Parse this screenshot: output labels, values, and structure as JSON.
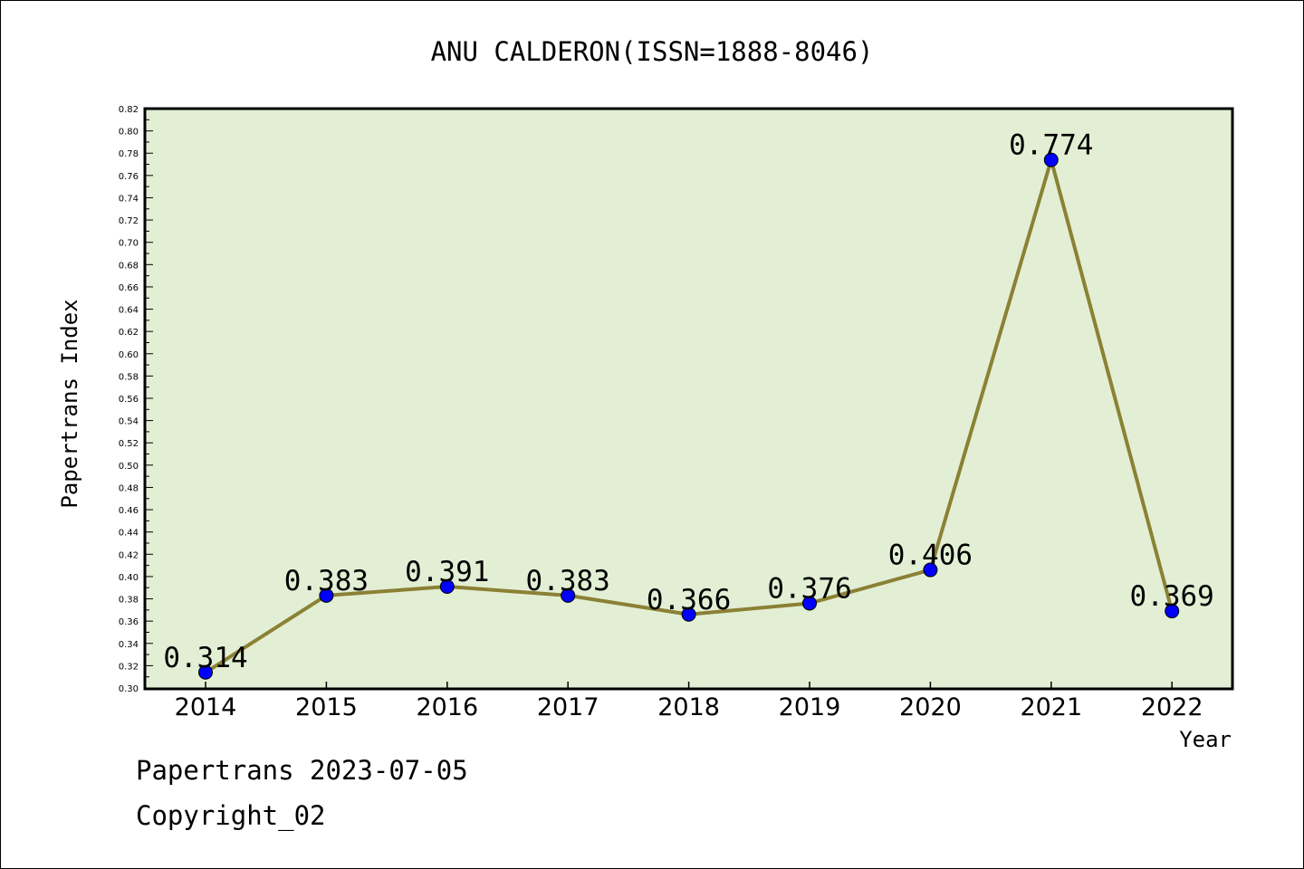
{
  "chart_data": {
    "type": "line",
    "title": "ANU CALDERON(ISSN=1888-8046)",
    "xlabel": "Year",
    "ylabel": "Papertrans Index",
    "categories": [
      "2014",
      "2015",
      "2016",
      "2017",
      "2018",
      "2019",
      "2020",
      "2021",
      "2022"
    ],
    "values": [
      0.314,
      0.383,
      0.391,
      0.383,
      0.366,
      0.376,
      0.406,
      0.774,
      0.369
    ],
    "data_labels": [
      "0.314",
      "0.383",
      "0.391",
      "0.383",
      "0.366",
      "0.376",
      "0.406",
      "0.774",
      "0.369"
    ],
    "ylim": [
      0.3,
      0.82
    ],
    "yticks": [
      "0.30",
      "0.32",
      "0.34",
      "0.36",
      "0.38",
      "0.40",
      "0.42",
      "0.44",
      "0.46",
      "0.48",
      "0.50",
      "0.52",
      "0.54",
      "0.56",
      "0.58",
      "0.60",
      "0.62",
      "0.64",
      "0.66",
      "0.68",
      "0.70",
      "0.72",
      "0.74",
      "0.76",
      "0.78",
      "0.80",
      "0.82"
    ],
    "grid": false,
    "colors": {
      "plot_background": "#e2efd4",
      "line": "#8b8135",
      "marker": "#0000ff"
    }
  },
  "footer": {
    "line1": "Papertrans 2023-07-05",
    "line2": "Copyright_02"
  }
}
